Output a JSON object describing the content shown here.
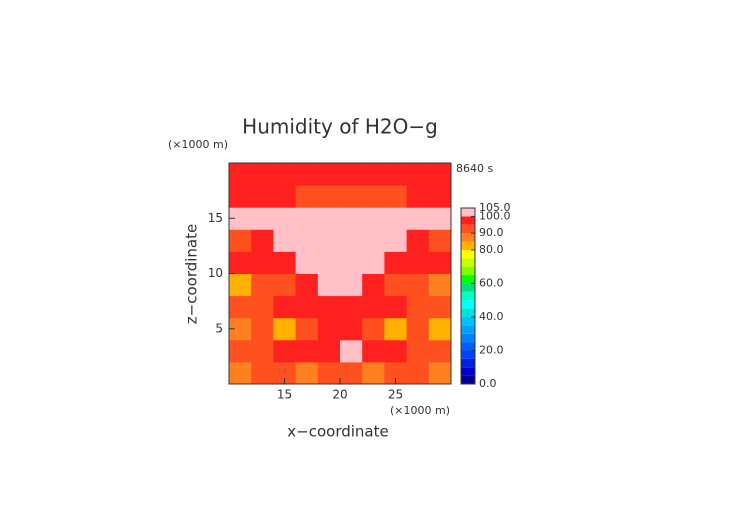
{
  "chart_data": {
    "type": "contour",
    "title": "Humidity of H2O−g",
    "time_label": "8640 s",
    "x_label": "x−coordinate",
    "y_label": "z−coordinate",
    "x_unit": "(×1000 m)",
    "y_unit": "(×1000 m)",
    "xlim": [
      10,
      30
    ],
    "ylim": [
      0,
      20
    ],
    "xticks": [
      15,
      20,
      25
    ],
    "yticks": [
      5,
      10,
      15
    ],
    "x": [
      11,
      13,
      15,
      17,
      19,
      21,
      23,
      25,
      27,
      29
    ],
    "y": [
      1,
      3,
      5,
      7,
      9,
      11,
      13,
      15,
      17,
      19
    ],
    "z": [
      [
        88,
        90,
        92,
        88,
        92,
        92,
        88,
        92,
        90,
        88
      ],
      [
        92,
        90,
        97,
        97,
        97,
        102,
        97,
        97,
        90,
        92
      ],
      [
        88,
        90,
        80,
        92,
        97,
        97,
        92,
        80,
        90,
        80
      ],
      [
        90,
        92,
        97,
        95,
        97,
        97,
        95,
        97,
        92,
        90
      ],
      [
        80,
        90,
        92,
        97,
        102,
        102,
        97,
        92,
        90,
        88
      ],
      [
        97,
        97,
        97,
        102,
        102,
        102,
        102,
        97,
        97,
        97
      ],
      [
        92,
        97,
        102,
        102,
        102,
        102,
        102,
        102,
        97,
        92
      ],
      [
        101,
        102,
        102,
        102,
        102,
        102,
        102,
        102,
        102,
        101
      ],
      [
        97,
        97,
        97,
        92,
        92,
        92,
        92,
        92,
        97,
        97
      ],
      [
        97,
        97,
        97,
        97,
        97,
        97,
        97,
        97,
        97,
        97
      ]
    ],
    "colorbar": {
      "lim": [
        0,
        105
      ],
      "levels": [
        0,
        5,
        10,
        15,
        20,
        25,
        30,
        35,
        40,
        45,
        50,
        55,
        60,
        65,
        70,
        75,
        80,
        85,
        90,
        95,
        100,
        105
      ],
      "colors": [
        "#000090",
        "#0000c8",
        "#0020e0",
        "#0040ff",
        "#0060ff",
        "#0080ff",
        "#00a0ff",
        "#00c0ff",
        "#00e0e0",
        "#00ffff",
        "#00ffc0",
        "#00e080",
        "#00ff00",
        "#80ff00",
        "#c8ff00",
        "#ffff00",
        "#ffb000",
        "#ff8020",
        "#ff5020",
        "#ff2020",
        "#ffc0c8"
      ],
      "ticks": [
        {
          "value": 0,
          "label": "0.0"
        },
        {
          "value": 20,
          "label": "20.0"
        },
        {
          "value": 40,
          "label": "40.0"
        },
        {
          "value": 60,
          "label": "60.0"
        },
        {
          "value": 80,
          "label": "80.0"
        },
        {
          "value": 90,
          "label": "90.0"
        },
        {
          "value": 100,
          "label": "100.0"
        },
        {
          "value": 105,
          "label": "105.0"
        }
      ]
    }
  }
}
